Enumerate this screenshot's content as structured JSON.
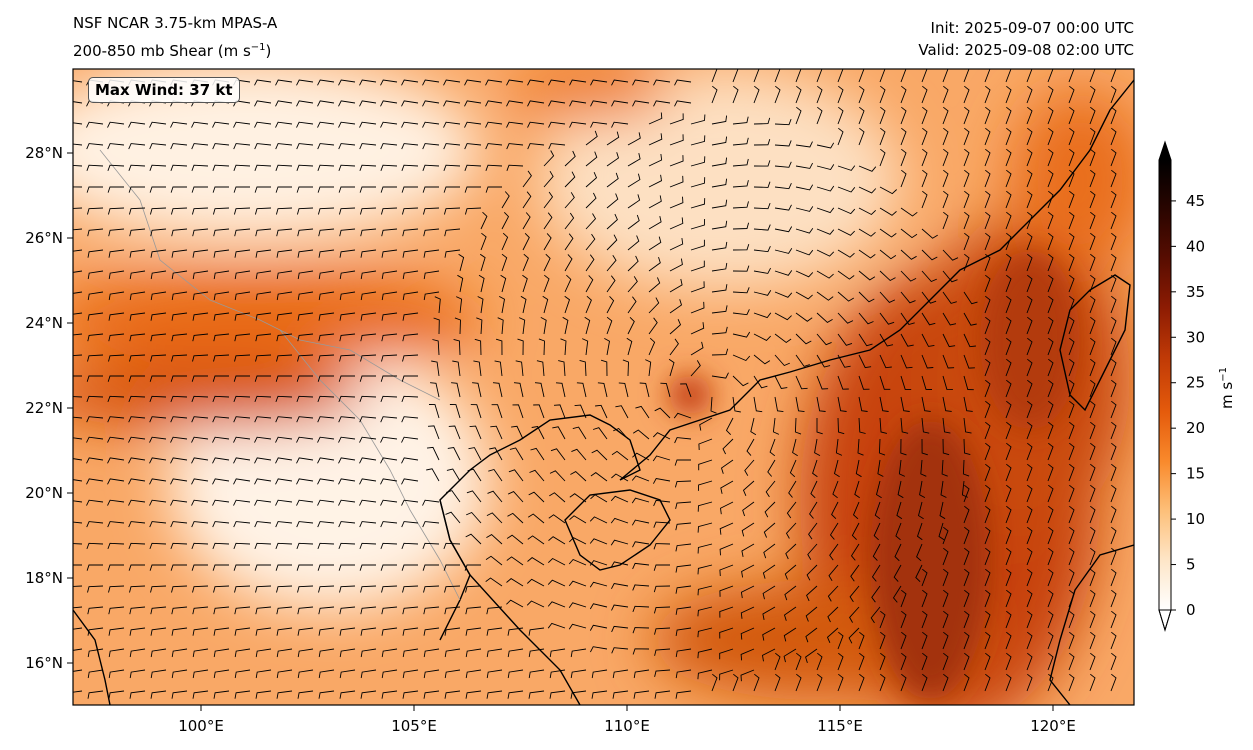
{
  "header": {
    "title": "NSF NCAR 3.75-km MPAS-A",
    "subtitle_main": "200-850 mb Shear (m s",
    "subtitle_exp": "−1",
    "subtitle_close": ")",
    "init": "Init: 2025-09-07 00:00 UTC",
    "valid": "Valid: 2025-09-08 02:00 UTC"
  },
  "annotation": {
    "max_wind": "Max Wind: 37 kt"
  },
  "map": {
    "lon_ticks": [
      "100°E",
      "105°E",
      "110°E",
      "115°E",
      "120°E"
    ],
    "lat_ticks": [
      "16°N",
      "18°N",
      "20°N",
      "22°N",
      "24°N",
      "26°N",
      "28°N"
    ]
  },
  "colorbar": {
    "ticks": [
      "0",
      "5",
      "10",
      "15",
      "20",
      "25",
      "30",
      "35",
      "40",
      "45"
    ],
    "label_main": "m s",
    "label_exp": "−1",
    "colors": [
      "#ffffff",
      "#fee6c8",
      "#fdc07a",
      "#f98a2c",
      "#e55b0c",
      "#c03a06",
      "#8e1c03",
      "#580d01",
      "#2a0500",
      "#000000"
    ]
  },
  "field_colors": {
    "ocean_strong": "#b83a09",
    "jet": "#e8660f",
    "moderate": "#f68d35",
    "weak": "#fdbf85",
    "calm": "#fff3e6"
  }
}
